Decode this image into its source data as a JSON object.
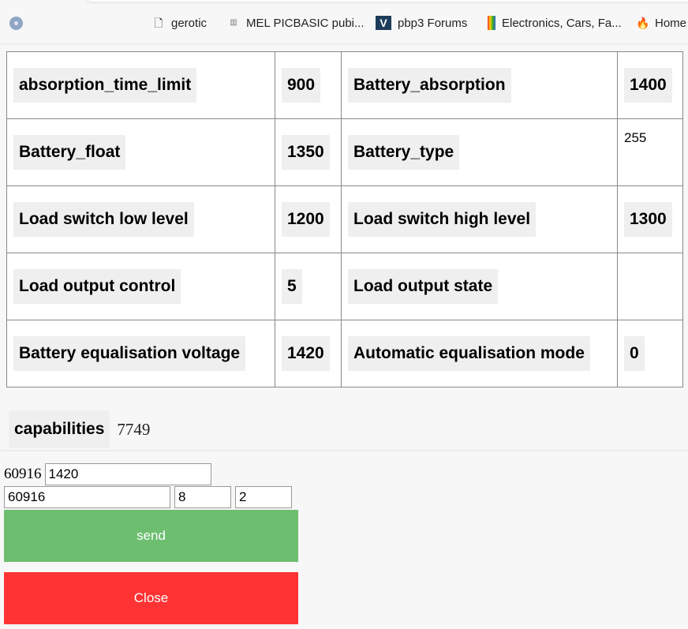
{
  "bookmarks": [
    {
      "label": "gerotic",
      "icon": "file-icon"
    },
    {
      "label": "MEL PICBASIC pubi...",
      "icon": "mel-icon"
    },
    {
      "label": "pbp3 Forums",
      "icon": "vbulletin-icon"
    },
    {
      "label": "Electronics, Cars, Fa...",
      "icon": "shopping-bag-icon"
    },
    {
      "label": "Home",
      "icon": "flame-icon"
    }
  ],
  "table": [
    [
      "absorption_time_limit",
      "900",
      "Battery_absorption",
      "1400"
    ],
    [
      "Battery_float",
      "1350",
      "Battery_type",
      "255"
    ],
    [
      "Load switch low level",
      "1200",
      "Load switch high level",
      "1300"
    ],
    [
      "Load output control",
      "5",
      "Load output state",
      ""
    ],
    [
      "Battery equalisation voltage",
      "1420",
      "Automatic equalisation mode",
      "0"
    ]
  ],
  "capabilities": {
    "label": "capabilities",
    "value": "7749"
  },
  "form": {
    "label": "60916",
    "value_input": "1420",
    "address_input": "60916",
    "field2": "8",
    "field3": "2"
  },
  "buttons": {
    "send": "send",
    "close": "Close"
  },
  "colors": {
    "send": "#6dbe6f",
    "close": "#ff3333"
  }
}
